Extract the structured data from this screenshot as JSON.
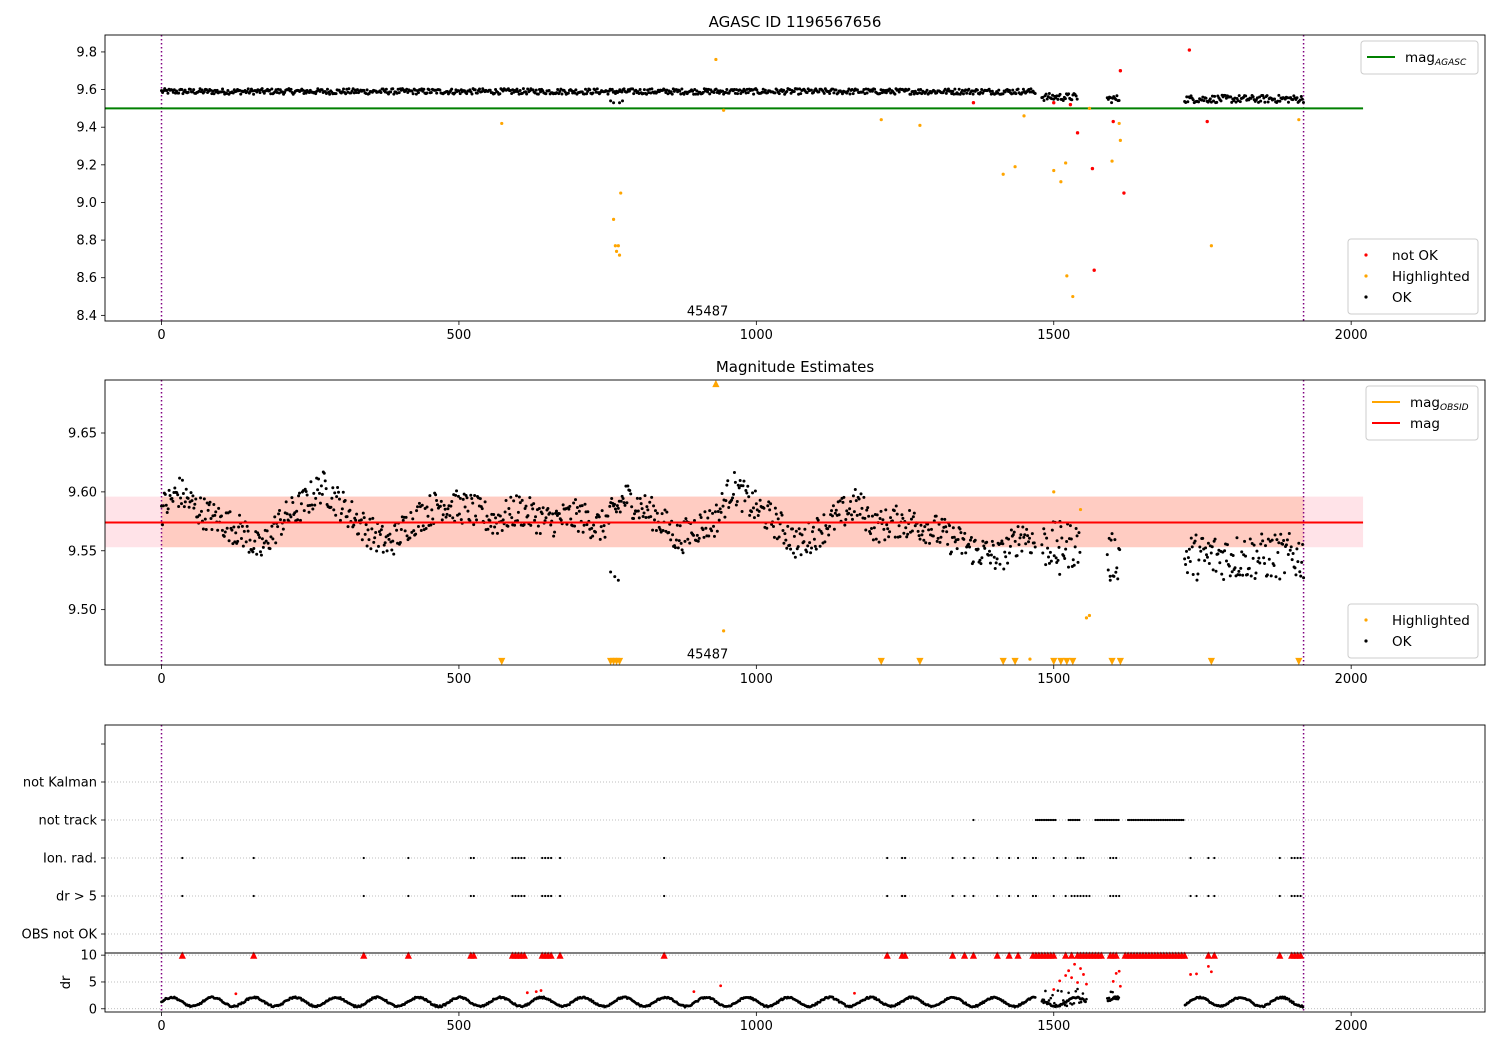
{
  "chart_data": [
    {
      "type": "scatter",
      "title": "AGASC ID 1196567656",
      "xlim": [
        -95,
        2225
      ],
      "ylim": [
        8.37,
        9.89
      ],
      "xticks": [
        0,
        500,
        1000,
        1500,
        2000
      ],
      "yticks": [
        8.4,
        8.6,
        8.8,
        9.0,
        9.2,
        9.4,
        9.6,
        9.8
      ],
      "ytick_labels": [
        "8.4",
        "8.6",
        "8.8",
        "9.0",
        "9.2",
        "9.4",
        "9.6",
        "9.8"
      ],
      "annotation": {
        "text": "45487",
        "x": 955,
        "y": 8.42
      },
      "vlines": [
        0,
        1920
      ],
      "hlines": [
        {
          "name": "mag_AGASC",
          "y": 9.5,
          "color": "#008000",
          "x0": -95,
          "x1": 2020
        }
      ],
      "legends": [
        {
          "position": "upper-right",
          "entries": [
            {
              "label": "mag",
              "sub": "AGASC",
              "kind": "line",
              "color": "#008000"
            }
          ]
        },
        {
          "position": "lower-right",
          "entries": [
            {
              "label": "not OK",
              "kind": "dot",
              "color": "#ff0000"
            },
            {
              "label": "Highlighted",
              "kind": "dot",
              "color": "#ffa500"
            },
            {
              "label": "OK",
              "kind": "dot",
              "color": "#000000"
            }
          ]
        }
      ],
      "series": [
        {
          "name": "OK",
          "color": "#000000",
          "style": "band",
          "segments": [
            [
              0,
              1470,
              9.575,
              9.605
            ],
            [
              1480,
              1540,
              9.54,
              9.58
            ],
            [
              1590,
              1610,
              9.53,
              9.57
            ],
            [
              1720,
              1920,
              9.53,
              9.57
            ]
          ]
        },
        {
          "name": "Highlighted",
          "color": "#ffa500",
          "points": [
            [
              572,
              9.42
            ],
            [
              760,
              8.91
            ],
            [
              763,
              8.77
            ],
            [
              768,
              8.77
            ],
            [
              765,
              8.74
            ],
            [
              770,
              8.72
            ],
            [
              772,
              9.05
            ],
            [
              932,
              9.76
            ],
            [
              945,
              9.49
            ],
            [
              1210,
              9.44
            ],
            [
              1275,
              9.41
            ],
            [
              1415,
              9.15
            ],
            [
              1435,
              9.19
            ],
            [
              1450,
              9.46
            ],
            [
              1500,
              9.17
            ],
            [
              1512,
              9.11
            ],
            [
              1520,
              9.21
            ],
            [
              1522,
              8.61
            ],
            [
              1532,
              8.5
            ],
            [
              1560,
              9.5
            ],
            [
              1598,
              9.22
            ],
            [
              1612,
              9.33
            ],
            [
              1610,
              9.42
            ],
            [
              1765,
              8.77
            ],
            [
              1912,
              9.44
            ]
          ]
        },
        {
          "name": "not OK",
          "color": "#ff0000",
          "points": [
            [
              1365,
              9.53
            ],
            [
              1500,
              9.53
            ],
            [
              1528,
              9.52
            ],
            [
              1540,
              9.37
            ],
            [
              1565,
              9.18
            ],
            [
              1568,
              8.64
            ],
            [
              1600,
              9.43
            ],
            [
              1612,
              9.7
            ],
            [
              1618,
              9.05
            ],
            [
              1728,
              9.81
            ],
            [
              1758,
              9.43
            ]
          ]
        }
      ]
    },
    {
      "type": "scatter",
      "title": "Magnitude Estimates",
      "xlim": [
        -95,
        2225
      ],
      "ylim": [
        9.453,
        9.695
      ],
      "xticks": [
        0,
        500,
        1000,
        1500,
        2000
      ],
      "yticks": [
        9.5,
        9.55,
        9.6,
        9.65
      ],
      "ytick_labels": [
        "9.50",
        "9.55",
        "9.60",
        "9.65"
      ],
      "annotation": {
        "text": "45487",
        "x": 955,
        "y": 9.462
      },
      "vlines": [
        0,
        1920
      ],
      "hlines": [
        {
          "name": "mag",
          "y": 9.574,
          "color": "#ff0000",
          "x0": -95,
          "x1": 2020
        }
      ],
      "bands": [
        {
          "name": "mag_band",
          "y0": 9.553,
          "y1": 9.596,
          "x0": -95,
          "x1": 2020,
          "color": "#ffc0cb",
          "opacity": 0.45
        },
        {
          "name": "mag_obsid_band",
          "y0": 9.553,
          "y1": 9.596,
          "x0": 0,
          "x1": 1920,
          "color": "#ffa07a",
          "opacity": 0.35
        }
      ],
      "legends": [
        {
          "position": "upper-right",
          "entries": [
            {
              "label": "mag",
              "sub": "OBSID",
              "kind": "line",
              "color": "#ffa500"
            },
            {
              "label": "mag",
              "kind": "line",
              "color": "#ff0000"
            }
          ]
        },
        {
          "position": "lower-right",
          "entries": [
            {
              "label": "Highlighted",
              "kind": "dot",
              "color": "#ffa500"
            },
            {
              "label": "OK",
              "kind": "dot",
              "color": "#000000"
            }
          ]
        }
      ],
      "series": [
        {
          "name": "OK",
          "color": "#000000",
          "style": "cloud",
          "profile": [
            [
              0,
              9.585
            ],
            [
              30,
              9.6
            ],
            [
              60,
              9.585
            ],
            [
              100,
              9.575
            ],
            [
              140,
              9.565
            ],
            [
              165,
              9.55
            ],
            [
              200,
              9.575
            ],
            [
              240,
              9.59
            ],
            [
              270,
              9.605
            ],
            [
              300,
              9.59
            ],
            [
              340,
              9.57
            ],
            [
              380,
              9.555
            ],
            [
              420,
              9.575
            ],
            [
              470,
              9.59
            ],
            [
              520,
              9.585
            ],
            [
              560,
              9.575
            ],
            [
              600,
              9.585
            ],
            [
              650,
              9.575
            ],
            [
              700,
              9.58
            ],
            [
              740,
              9.57
            ],
            [
              780,
              9.595
            ],
            [
              830,
              9.58
            ],
            [
              870,
              9.56
            ],
            [
              900,
              9.57
            ],
            [
              930,
              9.575
            ],
            [
              960,
              9.605
            ],
            [
              990,
              9.59
            ],
            [
              1030,
              9.575
            ],
            [
              1070,
              9.555
            ],
            [
              1100,
              9.565
            ],
            [
              1140,
              9.58
            ],
            [
              1170,
              9.59
            ],
            [
              1200,
              9.57
            ],
            [
              1240,
              9.575
            ],
            [
              1290,
              9.57
            ],
            [
              1330,
              9.56
            ],
            [
              1370,
              9.55
            ],
            [
              1410,
              9.545
            ],
            [
              1450,
              9.565
            ],
            [
              1470,
              9.555
            ]
          ],
          "extra_segments": [
            [
              1480,
              1545,
              9.555
            ],
            [
              1590,
              1612,
              9.545
            ],
            [
              1720,
              1920,
              9.545
            ]
          ],
          "dips": [
            [
              755,
              9.532
            ],
            [
              762,
              9.528
            ],
            [
              768,
              9.525
            ],
            [
              1505,
              9.54
            ],
            [
              1510,
              9.53
            ],
            [
              1595,
              9.525
            ]
          ]
        },
        {
          "name": "Highlighted",
          "color": "#ffa500",
          "points": [
            [
              1500,
              9.6
            ],
            [
              1545,
              9.585
            ],
            [
              1555,
              9.493
            ],
            [
              1560,
              9.495
            ],
            [
              945,
              9.482
            ],
            [
              1460,
              9.458
            ]
          ]
        },
        {
          "name": "Highlighted (off-scale)",
          "color": "#ffa500",
          "marker": "triangle-down",
          "points": [
            [
              572,
              9.456
            ],
            [
              755,
              9.456
            ],
            [
              760,
              9.456
            ],
            [
              765,
              9.456
            ],
            [
              770,
              9.456
            ],
            [
              1210,
              9.456
            ],
            [
              1275,
              9.456
            ],
            [
              1415,
              9.456
            ],
            [
              1435,
              9.456
            ],
            [
              1500,
              9.456
            ],
            [
              1512,
              9.456
            ],
            [
              1522,
              9.456
            ],
            [
              1532,
              9.456
            ],
            [
              1598,
              9.456
            ],
            [
              1612,
              9.456
            ],
            [
              1765,
              9.456
            ],
            [
              1912,
              9.456
            ]
          ]
        },
        {
          "name": "Highlighted (above)",
          "color": "#ffa500",
          "marker": "triangle-up",
          "points": [
            [
              932,
              9.692
            ]
          ]
        }
      ]
    },
    {
      "type": "scatter",
      "title": "",
      "xlim": [
        -95,
        2225
      ],
      "ylim": [
        -0.5,
        5.5
      ],
      "yticks": [
        0,
        1,
        2,
        3,
        4,
        5
      ],
      "ytick_labels": [
        "OBS not OK",
        "dr > 5",
        "Ion. rad.",
        "not track",
        "not Kalman",
        ""
      ],
      "vlines": [
        0,
        1920
      ],
      "series": [
        {
          "name": "dr > 5",
          "row": 1,
          "points": [
            35,
            155,
            340,
            415,
            520,
            525,
            590,
            595,
            600,
            605,
            610,
            640,
            645,
            650,
            655,
            670,
            845,
            1220,
            1245,
            1250,
            1330,
            1350,
            1365,
            1405,
            1425,
            1440,
            1465,
            1470,
            1500,
            1520,
            1530,
            1535,
            1540,
            1545,
            1550,
            1555,
            1560,
            1595,
            1600,
            1605,
            1610,
            1730,
            1740,
            1760,
            1770,
            1880,
            1900,
            1905,
            1910,
            1915
          ]
        },
        {
          "name": "Ion. rad.",
          "row": 2,
          "points": [
            35,
            155,
            340,
            415,
            520,
            525,
            590,
            595,
            600,
            605,
            610,
            640,
            645,
            650,
            655,
            670,
            845,
            1220,
            1245,
            1250,
            1330,
            1350,
            1365,
            1405,
            1425,
            1440,
            1465,
            1470,
            1500,
            1520,
            1540,
            1545,
            1550,
            1595,
            1600,
            1605,
            1730,
            1760,
            1770,
            1880,
            1900,
            1905,
            1910,
            1915
          ]
        },
        {
          "name": "not track",
          "row": 3,
          "segments": [
            [
              1365,
              1365
            ],
            [
              1470,
              1505
            ],
            [
              1525,
              1545
            ],
            [
              1570,
              1610
            ],
            [
              1625,
              1720
            ]
          ]
        }
      ]
    },
    {
      "type": "scatter",
      "title": "",
      "ylabel": "dr",
      "xlim": [
        -95,
        2225
      ],
      "ylim": [
        -0.6,
        10.4
      ],
      "xticks": [
        0,
        500,
        1000,
        1500,
        2000
      ],
      "yticks": [
        0,
        5,
        10
      ],
      "ytick_labels": [
        "0",
        "5",
        "10"
      ],
      "vlines": [
        0,
        1920
      ],
      "series": [
        {
          "name": "OK",
          "color": "#000000",
          "style": "cloud",
          "range": [
            0,
            1920
          ],
          "gaps": [
            [
              1470,
              1480
            ],
            [
              1555,
              1590
            ],
            [
              1610,
              1720
            ]
          ],
          "y": [
            0.3,
            2.7
          ]
        },
        {
          "name": "not OK",
          "color": "#ff0000",
          "points": [
            [
              125,
              2.8
            ],
            [
              615,
              3.0
            ],
            [
              630,
              3.2
            ],
            [
              638,
              3.4
            ],
            [
              895,
              3.2
            ],
            [
              940,
              4.3
            ],
            [
              1165,
              2.9
            ],
            [
              1500,
              3.6
            ],
            [
              1510,
              5.2
            ],
            [
              1520,
              6.2
            ],
            [
              1525,
              7.1
            ],
            [
              1530,
              5.8
            ],
            [
              1535,
              8.3
            ],
            [
              1540,
              4.9
            ],
            [
              1545,
              7.5
            ],
            [
              1550,
              6.4
            ],
            [
              1555,
              4.6
            ],
            [
              1600,
              5.1
            ],
            [
              1605,
              6.6
            ],
            [
              1610,
              7.0
            ],
            [
              1612,
              4.2
            ],
            [
              1730,
              6.4
            ],
            [
              1740,
              6.5
            ],
            [
              1760,
              7.9
            ],
            [
              1765,
              6.9
            ]
          ]
        },
        {
          "name": "not OK (off-scale)",
          "color": "#ff0000",
          "marker": "triangle-up",
          "points": [
            35,
            155,
            340,
            415,
            520,
            525,
            590,
            595,
            600,
            605,
            610,
            640,
            645,
            650,
            655,
            670,
            845,
            1220,
            1245,
            1250,
            1330,
            1350,
            1365,
            1405,
            1425,
            1440,
            1465,
            1470,
            1475,
            1480,
            1485,
            1490,
            1495,
            1500,
            1520,
            1530,
            1540,
            1545,
            1550,
            1555,
            1560,
            1565,
            1570,
            1575,
            1580,
            1595,
            1600,
            1605,
            1620,
            1625,
            1630,
            1635,
            1640,
            1645,
            1650,
            1655,
            1660,
            1665,
            1670,
            1675,
            1680,
            1685,
            1690,
            1695,
            1700,
            1705,
            1710,
            1715,
            1720,
            1760,
            1770,
            1880,
            1900,
            1905,
            1910,
            1915
          ]
        }
      ]
    }
  ]
}
